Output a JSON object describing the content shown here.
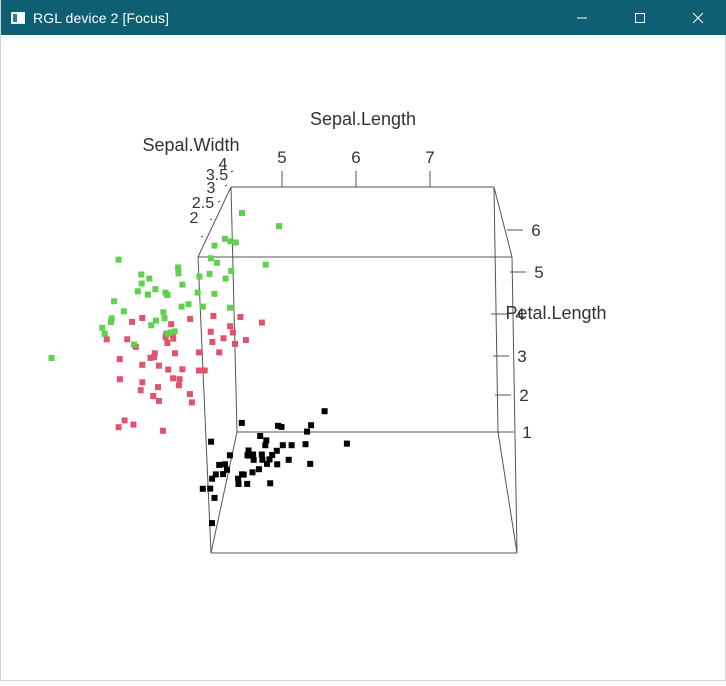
{
  "window": {
    "title": "RGL device 2 [Focus]",
    "titlebar_color": "#0e5f72",
    "controls": [
      "minimize-icon",
      "maximize-icon",
      "close-icon"
    ]
  },
  "chart_data": {
    "type": "scatter",
    "dimensions": 3,
    "title": "",
    "xlabel": "Sepal.Length",
    "ylabel": "Sepal.Width",
    "zlabel": "Petal.Length",
    "x_ticks": [
      "5",
      "6",
      "7"
    ],
    "y_ticks": [
      "2",
      "2.5",
      "3",
      "3.5",
      "4"
    ],
    "z_ticks": [
      "1",
      "2",
      "3",
      "4",
      "5",
      "6"
    ],
    "series_colors": [
      "#000000",
      "#df536b",
      "#61d04f"
    ],
    "series": [
      {
        "name": "",
        "color": "#000000",
        "points": [
          [
            5.1,
            3.5,
            1.4
          ],
          [
            4.9,
            3.0,
            1.4
          ],
          [
            4.7,
            3.2,
            1.3
          ],
          [
            4.6,
            3.1,
            1.5
          ],
          [
            5.0,
            3.6,
            1.4
          ],
          [
            5.4,
            3.9,
            1.7
          ],
          [
            4.6,
            3.4,
            1.4
          ],
          [
            5.0,
            3.4,
            1.5
          ],
          [
            4.4,
            2.9,
            1.4
          ],
          [
            4.9,
            3.1,
            1.5
          ],
          [
            5.4,
            3.7,
            1.5
          ],
          [
            4.8,
            3.4,
            1.6
          ],
          [
            4.8,
            3.0,
            1.4
          ],
          [
            4.3,
            3.0,
            1.1
          ],
          [
            5.8,
            4.0,
            1.2
          ],
          [
            5.7,
            4.4,
            1.5
          ],
          [
            5.4,
            3.9,
            1.3
          ],
          [
            5.1,
            3.5,
            1.4
          ],
          [
            5.7,
            3.8,
            1.7
          ],
          [
            5.1,
            3.8,
            1.5
          ],
          [
            5.4,
            3.4,
            1.7
          ],
          [
            5.1,
            3.7,
            1.5
          ],
          [
            4.6,
            3.6,
            1.0
          ],
          [
            5.1,
            3.3,
            1.7
          ],
          [
            4.8,
            3.4,
            1.9
          ],
          [
            5.0,
            3.0,
            1.6
          ],
          [
            5.0,
            3.4,
            1.6
          ],
          [
            5.2,
            3.5,
            1.5
          ],
          [
            5.2,
            3.4,
            1.4
          ],
          [
            4.7,
            3.2,
            1.6
          ],
          [
            4.8,
            3.1,
            1.6
          ],
          [
            5.4,
            3.4,
            1.5
          ],
          [
            5.2,
            4.1,
            1.5
          ],
          [
            5.5,
            4.2,
            1.4
          ],
          [
            4.9,
            3.1,
            1.5
          ],
          [
            5.0,
            3.2,
            1.2
          ],
          [
            5.5,
            3.5,
            1.3
          ],
          [
            4.9,
            3.6,
            1.4
          ],
          [
            4.4,
            3.0,
            1.3
          ],
          [
            5.1,
            3.4,
            1.5
          ],
          [
            5.0,
            3.5,
            1.3
          ],
          [
            4.5,
            2.3,
            1.3
          ],
          [
            4.4,
            3.2,
            1.3
          ],
          [
            5.0,
            3.5,
            1.6
          ],
          [
            5.1,
            3.8,
            1.9
          ],
          [
            4.8,
            3.0,
            1.4
          ],
          [
            5.1,
            3.8,
            1.6
          ],
          [
            4.6,
            3.2,
            1.4
          ],
          [
            5.3,
            3.7,
            1.5
          ],
          [
            5.0,
            3.3,
            1.4
          ]
        ]
      },
      {
        "name": "",
        "color": "#df536b",
        "points": [
          [
            7.0,
            3.2,
            4.7
          ],
          [
            6.4,
            3.2,
            4.5
          ],
          [
            6.9,
            3.1,
            4.9
          ],
          [
            5.5,
            2.3,
            4.0
          ],
          [
            6.5,
            2.8,
            4.6
          ],
          [
            5.7,
            2.8,
            4.5
          ],
          [
            6.3,
            3.3,
            4.7
          ],
          [
            4.9,
            2.4,
            3.3
          ],
          [
            6.6,
            2.9,
            4.6
          ],
          [
            5.2,
            2.7,
            3.9
          ],
          [
            5.0,
            2.0,
            3.5
          ],
          [
            5.9,
            3.0,
            4.2
          ],
          [
            6.0,
            2.2,
            4.0
          ],
          [
            6.1,
            2.9,
            4.7
          ],
          [
            5.6,
            2.9,
            3.6
          ],
          [
            6.7,
            3.1,
            4.4
          ],
          [
            5.6,
            3.0,
            4.5
          ],
          [
            5.8,
            2.7,
            4.1
          ],
          [
            6.2,
            2.2,
            4.5
          ],
          [
            5.6,
            2.5,
            3.9
          ],
          [
            5.9,
            3.2,
            4.8
          ],
          [
            6.1,
            2.8,
            4.0
          ],
          [
            6.3,
            2.5,
            4.9
          ],
          [
            6.1,
            2.8,
            4.7
          ],
          [
            6.4,
            2.9,
            4.3
          ],
          [
            6.6,
            3.0,
            4.4
          ],
          [
            6.8,
            2.8,
            4.8
          ],
          [
            6.7,
            3.0,
            5.0
          ],
          [
            6.0,
            2.9,
            4.5
          ],
          [
            5.7,
            2.6,
            3.5
          ],
          [
            5.5,
            2.4,
            3.8
          ],
          [
            5.5,
            2.4,
            3.7
          ],
          [
            5.8,
            2.7,
            3.9
          ],
          [
            6.0,
            2.7,
            5.1
          ],
          [
            5.4,
            3.0,
            4.5
          ],
          [
            6.0,
            3.4,
            4.5
          ],
          [
            6.7,
            3.1,
            4.7
          ],
          [
            6.3,
            2.3,
            4.4
          ],
          [
            5.6,
            3.0,
            4.1
          ],
          [
            5.5,
            2.5,
            4.0
          ],
          [
            5.5,
            2.6,
            4.4
          ],
          [
            6.1,
            3.0,
            4.6
          ],
          [
            5.8,
            2.6,
            4.0
          ],
          [
            5.0,
            2.3,
            3.3
          ],
          [
            5.6,
            2.7,
            4.2
          ],
          [
            5.7,
            3.0,
            4.2
          ],
          [
            5.7,
            2.9,
            4.2
          ],
          [
            6.2,
            2.9,
            4.3
          ],
          [
            5.1,
            2.5,
            3.0
          ],
          [
            5.7,
            2.8,
            4.1
          ]
        ]
      },
      {
        "name": "",
        "color": "#61d04f",
        "points": [
          [
            6.3,
            3.3,
            6.0
          ],
          [
            5.8,
            2.7,
            5.1
          ],
          [
            7.1,
            3.0,
            5.9
          ],
          [
            6.3,
            2.9,
            5.6
          ],
          [
            6.5,
            3.0,
            5.8
          ],
          [
            7.6,
            3.0,
            6.6
          ],
          [
            4.9,
            2.5,
            4.5
          ],
          [
            7.3,
            2.9,
            6.3
          ],
          [
            6.7,
            2.5,
            5.8
          ],
          [
            7.2,
            3.6,
            6.1
          ],
          [
            6.5,
            3.2,
            5.1
          ],
          [
            6.4,
            2.7,
            5.3
          ],
          [
            6.8,
            3.0,
            5.5
          ],
          [
            5.7,
            2.5,
            5.0
          ],
          [
            5.8,
            2.8,
            5.1
          ],
          [
            6.4,
            3.2,
            5.3
          ],
          [
            6.5,
            3.0,
            5.5
          ],
          [
            7.7,
            3.8,
            6.7
          ],
          [
            7.7,
            2.6,
            6.9
          ],
          [
            6.0,
            2.2,
            5.0
          ],
          [
            6.9,
            3.2,
            5.7
          ],
          [
            5.6,
            2.8,
            4.9
          ],
          [
            7.7,
            2.8,
            6.7
          ],
          [
            6.3,
            2.7,
            4.9
          ],
          [
            6.7,
            3.3,
            5.7
          ],
          [
            7.2,
            3.2,
            6.0
          ],
          [
            6.2,
            2.8,
            4.8
          ],
          [
            6.1,
            3.0,
            4.9
          ],
          [
            6.4,
            2.8,
            5.6
          ],
          [
            7.2,
            3.0,
            5.8
          ],
          [
            7.4,
            2.8,
            6.1
          ],
          [
            7.9,
            3.8,
            6.4
          ],
          [
            6.4,
            2.8,
            5.6
          ],
          [
            6.3,
            2.8,
            5.1
          ],
          [
            6.1,
            2.6,
            5.6
          ],
          [
            7.7,
            3.0,
            6.1
          ],
          [
            6.3,
            3.4,
            5.6
          ],
          [
            6.4,
            3.1,
            5.5
          ],
          [
            6.0,
            3.0,
            4.8
          ],
          [
            6.9,
            3.1,
            5.4
          ],
          [
            6.7,
            3.1,
            5.6
          ],
          [
            6.9,
            3.1,
            5.1
          ],
          [
            5.8,
            2.7,
            5.1
          ],
          [
            6.8,
            3.2,
            5.9
          ],
          [
            6.7,
            3.3,
            5.7
          ],
          [
            6.7,
            3.0,
            5.2
          ],
          [
            6.3,
            2.5,
            5.0
          ],
          [
            6.5,
            3.0,
            5.2
          ],
          [
            6.2,
            3.4,
            5.4
          ],
          [
            5.9,
            3.0,
            5.1
          ]
        ]
      }
    ]
  }
}
